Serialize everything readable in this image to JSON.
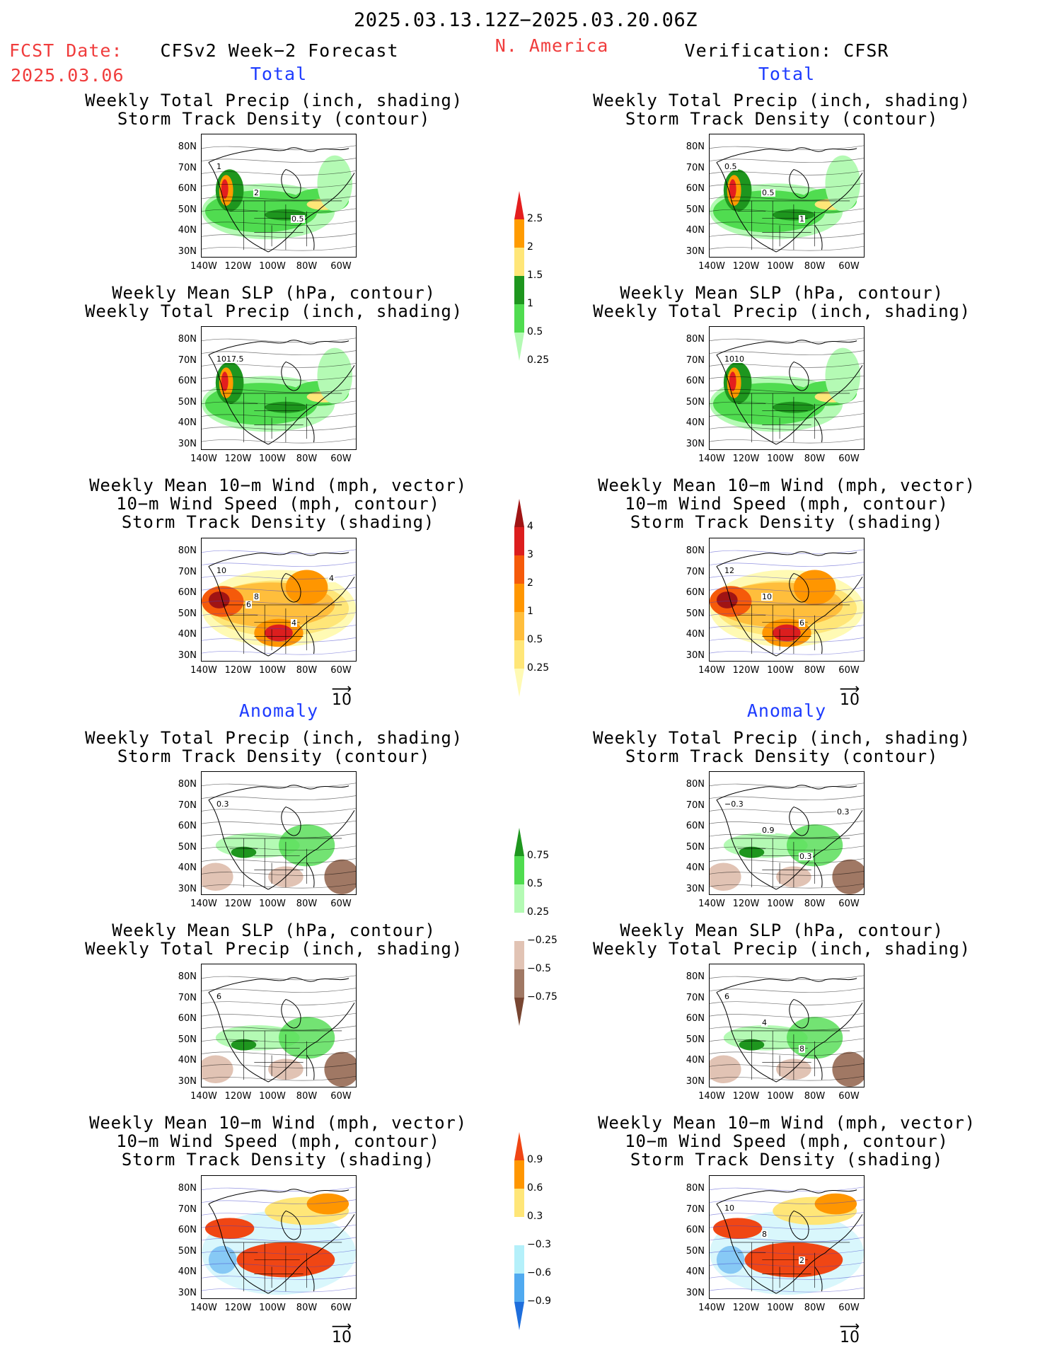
{
  "header": {
    "period": "2025.03.13.12Z−2025.03.20.06Z",
    "region": "N. America",
    "fcst_date_label": "FCST Date:",
    "fcst_date": "2025.03.06",
    "model": "CFSv2 Week−2 Forecast",
    "verification": "Verification: CFSR"
  },
  "sections": {
    "total": "Total",
    "anomaly": "Anomaly"
  },
  "titles": {
    "precip_storm": [
      "Weekly Total Precip (inch, shading)",
      "Storm Track Density (contour)"
    ],
    "slp_precip": [
      "Weekly Mean SLP (hPa, contour)",
      "Weekly Total Precip (inch, shading)"
    ],
    "wind_storm": [
      "Weekly Mean 10−m Wind (mph, vector)",
      "10−m Wind Speed (mph, contour)",
      "Storm Track Density (shading)"
    ]
  },
  "axes": {
    "lat_labels": [
      "80N",
      "70N",
      "60N",
      "50N",
      "40N",
      "30N"
    ],
    "lon_labels": [
      "140W",
      "120W",
      "100W",
      "80W",
      "60W"
    ]
  },
  "vector_ref": "10",
  "colorbars": {
    "precip_total": {
      "labels": [
        "2.5",
        "2",
        "1.5",
        "1",
        "0.5",
        "0.25"
      ],
      "colors": [
        "#e41e1e",
        "#ff9b00",
        "#ffe678",
        "#1e961e",
        "#50dc50",
        "#b4fab4"
      ]
    },
    "storm_total": {
      "labels": [
        "4",
        "3",
        "2",
        "1",
        "0.5",
        "0.25"
      ],
      "colors": [
        "#a01414",
        "#dc1e1e",
        "#f55a0a",
        "#ff9600",
        "#ffbe3c",
        "#ffe678",
        "#fffab4"
      ]
    },
    "precip_anom": {
      "labels": [
        "0.75",
        "0.5",
        "0.25",
        "−0.25",
        "−0.5",
        "−0.75"
      ],
      "colors": [
        "#1e961e",
        "#50dc50",
        "#b4fab4",
        "#ffffff",
        "#e1c3b4",
        "#a07864",
        "#784632"
      ]
    },
    "storm_anom": {
      "labels": [
        "0.9",
        "0.6",
        "0.3",
        "−0.3",
        "−0.6",
        "−0.9"
      ],
      "colors": [
        "#f04614",
        "#ff9600",
        "#ffe678",
        "#ffffff",
        "#b4f0fa",
        "#50aaf0",
        "#1e6edc"
      ]
    }
  },
  "contour_labels": {
    "f_precip_total": [
      "1",
      "2",
      "0.5"
    ],
    "v_precip_total": [
      "0.5",
      "0.5",
      "1"
    ],
    "f_slp_total": [
      "1017.5"
    ],
    "v_slp_total": [
      "1010"
    ],
    "f_wind_total": [
      "10",
      "8",
      "4",
      "4",
      "6"
    ],
    "v_wind_total": [
      "12",
      "10",
      "6"
    ],
    "f_precip_anom": [
      "0.3"
    ],
    "v_precip_anom": [
      "−0.3",
      "0.9",
      "0.3",
      "0.3"
    ],
    "f_slp_anom": [
      "6"
    ],
    "v_slp_anom": [
      "6",
      "4",
      "8"
    ],
    "f_wind_anom": [],
    "v_wind_anom": [
      "10",
      "8",
      "2"
    ]
  }
}
